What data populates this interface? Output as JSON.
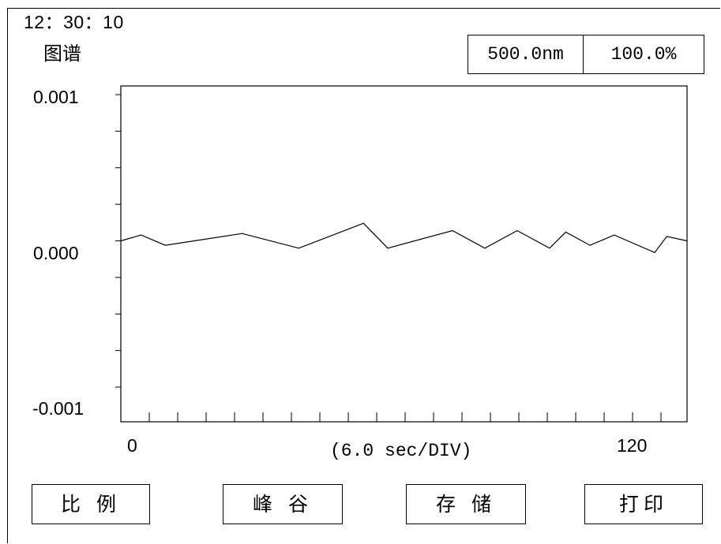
{
  "status": {
    "time": "12：30：10",
    "mode": "图谱"
  },
  "readout": {
    "wavelength": "500.0nm",
    "percent": "100.0%"
  },
  "axis": {
    "y_top": "0.001",
    "y_mid": "0.000",
    "y_bottom": "-0.001",
    "x_start": "0",
    "x_end": "120",
    "x_unit": "(6.0 sec/DIV)"
  },
  "buttons": {
    "ratio": "比 例",
    "peak_valley": "峰  谷",
    "save": "存 储",
    "print": "打印"
  },
  "chart_data": {
    "type": "line",
    "xlabel": "(6.0 sec/DIV)",
    "ylim": [
      -0.001,
      0.001
    ],
    "xlim": [
      -2,
      138
    ],
    "y_ticks": [
      "0.001",
      "0.000",
      "-0.001"
    ],
    "x_ticks": [
      "0",
      "120"
    ],
    "series": [
      {
        "x": [
          -2,
          3,
          9,
          28,
          42,
          58,
          64,
          80,
          88,
          96,
          104,
          108,
          114,
          120,
          130,
          133,
          138
        ],
        "y": [
          0.0,
          4e-05,
          -3e-05,
          5e-05,
          -5e-05,
          0.00012,
          -5e-05,
          7e-05,
          -5e-05,
          7e-05,
          -5e-05,
          6e-05,
          -3e-05,
          4e-05,
          -8e-05,
          3e-05,
          0.0
        ]
      }
    ]
  }
}
